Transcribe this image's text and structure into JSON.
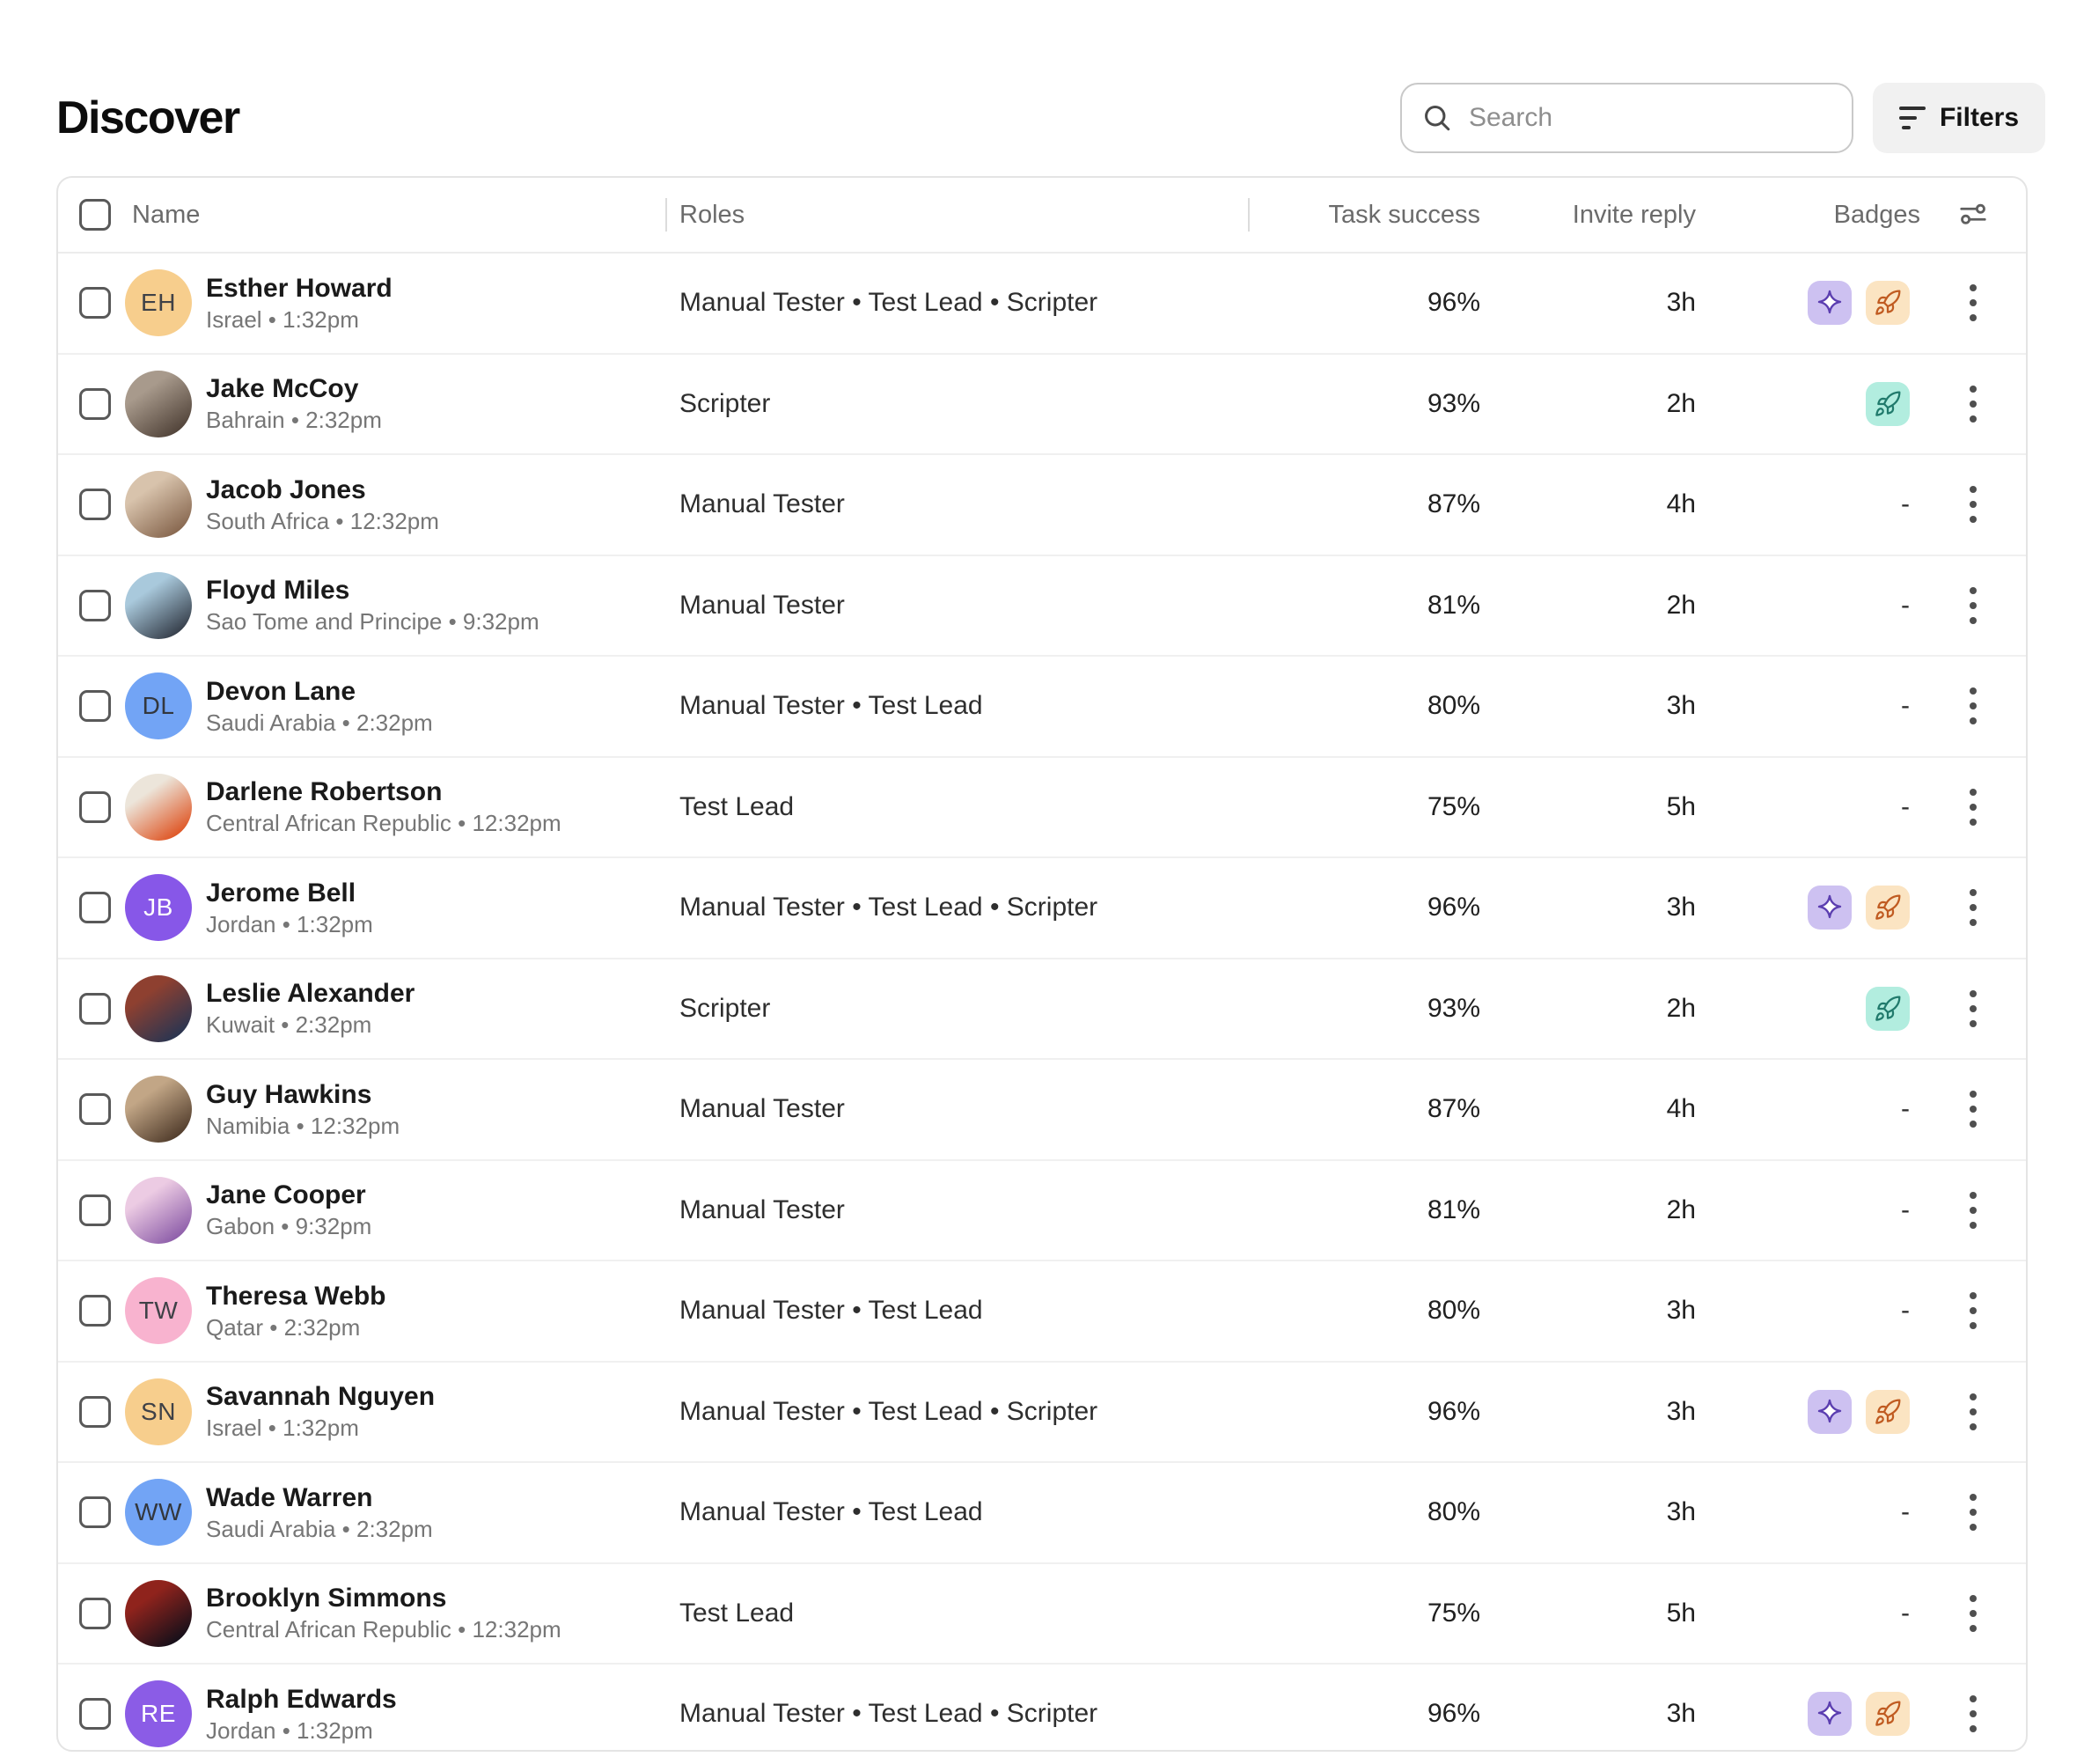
{
  "header": {
    "title": "Discover",
    "search_placeholder": "Search",
    "filters_label": "Filters"
  },
  "table": {
    "columns": [
      "Name",
      "Roles",
      "Task success",
      "Invite reply",
      "Badges"
    ],
    "meta_separator": " • ",
    "role_separator": " • ",
    "no_badges_placeholder": "-",
    "badge_styles": {
      "sparkle": {
        "bg": "#CDC1F1",
        "stroke": "#5B3EB0"
      },
      "rocket-orange": {
        "bg": "#FBE4C2",
        "stroke": "#C05B21"
      },
      "rocket-teal": {
        "bg": "#B2EDDF",
        "stroke": "#217A6C"
      }
    },
    "rows": [
      {
        "name": "Esther Howard",
        "location": "Israel",
        "time": "1:32pm",
        "roles": [
          "Manual Tester",
          "Test Lead",
          "Scripter"
        ],
        "task_success": "96%",
        "invite_reply": "3h",
        "badges": [
          "sparkle",
          "rocket-orange"
        ],
        "avatar": {
          "type": "initials",
          "text": "EH",
          "bg": "#F7CE8D",
          "fg": "#3F4147"
        }
      },
      {
        "name": "Jake McCoy",
        "location": "Bahrain",
        "time": "2:32pm",
        "roles": [
          "Scripter"
        ],
        "task_success": "93%",
        "invite_reply": "2h",
        "badges": [
          "rocket-teal"
        ],
        "avatar": {
          "type": "photo",
          "gradient": [
            "#a89a8c",
            "#54463c"
          ]
        }
      },
      {
        "name": "Jacob Jones",
        "location": "South Africa",
        "time": "12:32pm",
        "roles": [
          "Manual Tester"
        ],
        "task_success": "87%",
        "invite_reply": "4h",
        "badges": [],
        "avatar": {
          "type": "photo",
          "gradient": [
            "#d8c3ac",
            "#8a6a52"
          ]
        }
      },
      {
        "name": "Floyd Miles",
        "location": "Sao Tome and Principe",
        "time": "9:32pm",
        "roles": [
          "Manual Tester"
        ],
        "task_success": "81%",
        "invite_reply": "2h",
        "badges": [],
        "avatar": {
          "type": "photo",
          "gradient": [
            "#a9c9dc",
            "#39424e"
          ]
        }
      },
      {
        "name": "Devon Lane",
        "location": "Saudi Arabia",
        "time": "2:32pm",
        "roles": [
          "Manual Tester",
          "Test Lead"
        ],
        "task_success": "80%",
        "invite_reply": "3h",
        "badges": [],
        "avatar": {
          "type": "initials",
          "text": "DL",
          "bg": "#72A4F5",
          "fg": "#33373D"
        }
      },
      {
        "name": "Darlene Robertson",
        "location": "Central African Republic",
        "time": "12:32pm",
        "roles": [
          "Test Lead"
        ],
        "task_success": "75%",
        "invite_reply": "5h",
        "badges": [],
        "avatar": {
          "type": "photo",
          "gradient": [
            "#ece5da",
            "#df5a2a"
          ]
        }
      },
      {
        "name": "Jerome Bell",
        "location": "Jordan",
        "time": "1:32pm",
        "roles": [
          "Manual Tester",
          "Test Lead",
          "Scripter"
        ],
        "task_success": "96%",
        "invite_reply": "3h",
        "badges": [
          "sparkle",
          "rocket-orange"
        ],
        "avatar": {
          "type": "initials",
          "text": "JB",
          "bg": "#8757E8",
          "fg": "#FFFFFF"
        }
      },
      {
        "name": "Leslie Alexander",
        "location": "Kuwait",
        "time": "2:32pm",
        "roles": [
          "Scripter"
        ],
        "task_success": "93%",
        "invite_reply": "2h",
        "badges": [
          "rocket-teal"
        ],
        "avatar": {
          "type": "photo",
          "gradient": [
            "#8e4030",
            "#2c3550"
          ]
        }
      },
      {
        "name": "Guy Hawkins",
        "location": "Namibia",
        "time": "12:32pm",
        "roles": [
          "Manual Tester"
        ],
        "task_success": "87%",
        "invite_reply": "4h",
        "badges": [],
        "avatar": {
          "type": "photo",
          "gradient": [
            "#c2a686",
            "#55402f"
          ]
        }
      },
      {
        "name": "Jane Cooper",
        "location": "Gabon",
        "time": "9:32pm",
        "roles": [
          "Manual Tester"
        ],
        "task_success": "81%",
        "invite_reply": "2h",
        "badges": [],
        "avatar": {
          "type": "photo",
          "gradient": [
            "#eccbe3",
            "#9061ab"
          ]
        }
      },
      {
        "name": "Theresa Webb",
        "location": "Qatar",
        "time": "2:32pm",
        "roles": [
          "Manual Tester",
          "Test Lead"
        ],
        "task_success": "80%",
        "invite_reply": "3h",
        "badges": [],
        "avatar": {
          "type": "initials",
          "text": "TW",
          "bg": "#F8B3CF",
          "fg": "#3F4147"
        }
      },
      {
        "name": "Savannah Nguyen",
        "location": "Israel",
        "time": "1:32pm",
        "roles": [
          "Manual Tester",
          "Test Lead",
          "Scripter"
        ],
        "task_success": "96%",
        "invite_reply": "3h",
        "badges": [
          "sparkle",
          "rocket-orange"
        ],
        "avatar": {
          "type": "initials",
          "text": "SN",
          "bg": "#F7CE8D",
          "fg": "#3F4147"
        }
      },
      {
        "name": "Wade Warren",
        "location": "Saudi Arabia",
        "time": "2:32pm",
        "roles": [
          "Manual Tester",
          "Test Lead"
        ],
        "task_success": "80%",
        "invite_reply": "3h",
        "badges": [],
        "avatar": {
          "type": "initials",
          "text": "WW",
          "bg": "#72A4F5",
          "fg": "#33373D"
        }
      },
      {
        "name": "Brooklyn Simmons",
        "location": "Central African Republic",
        "time": "12:32pm",
        "roles": [
          "Test Lead"
        ],
        "task_success": "75%",
        "invite_reply": "5h",
        "badges": [],
        "avatar": {
          "type": "photo",
          "gradient": [
            "#8f231c",
            "#18101a"
          ]
        }
      },
      {
        "name": "Ralph Edwards",
        "location": "Jordan",
        "time": "1:32pm",
        "roles": [
          "Manual Tester",
          "Test Lead",
          "Scripter"
        ],
        "task_success": "96%",
        "invite_reply": "3h",
        "badges": [
          "sparkle",
          "rocket-orange"
        ],
        "avatar": {
          "type": "initials",
          "text": "RE",
          "bg": "#8B5CE6",
          "fg": "#FFFFFF"
        }
      }
    ]
  }
}
